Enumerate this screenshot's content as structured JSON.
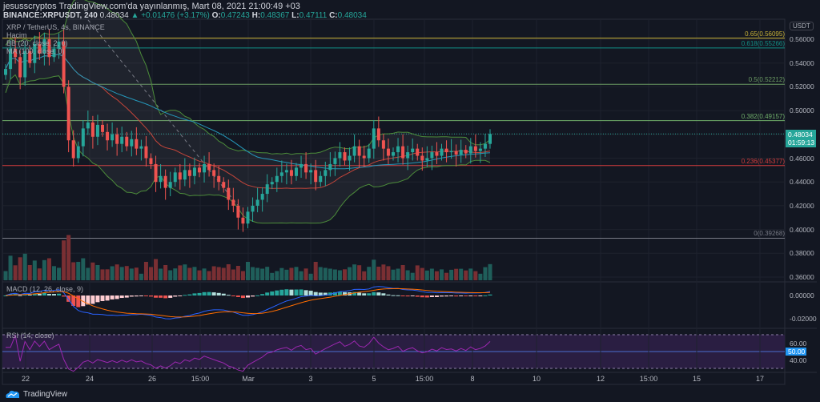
{
  "header": {
    "publisher": "jesusscryptos TradingView.com'da yayınlanmış, Mart 08, 2021 21:00:49 +03",
    "symbol": "BINANCE:XRPUSDT, 240",
    "last": "0.48034",
    "change": "▲ +0.01476 (+3.17%)",
    "o_label": "O:",
    "o": "0.47243",
    "h_label": "H:",
    "h": "0.48367",
    "l_label": "L:",
    "l": "0.47111",
    "c_label": "C:",
    "c": "0.48034"
  },
  "legend": {
    "title": "XRP / TetherUS, 4s, BINANCE",
    "volume": "Hacim",
    "bb": "BB (20, close, 2, 0)",
    "ma": "MA (100, close, 0)",
    "macd": "MACD (12, 26, close, 9)",
    "rsi": "RSI (14, close)"
  },
  "axis": {
    "currency": "USDT",
    "price_labels": [
      "0.56000",
      "0.54000",
      "0.52000",
      "0.50000",
      "0.46000",
      "0.44000",
      "0.42000",
      "0.40000",
      "0.38000",
      "0.36000"
    ],
    "macd_labels": [
      "0.00000",
      "-0.02000"
    ],
    "rsi_labels": [
      "60.00",
      "40.00"
    ],
    "rsi_current": "50.00",
    "last_price": "0.48034",
    "countdown": "01:59:13",
    "time_labels": [
      "22",
      "24",
      "26",
      "15:00",
      "Mar",
      "3",
      "5",
      "15:00",
      "8",
      "10",
      "12",
      "15:00",
      "15",
      "17"
    ]
  },
  "fib": [
    {
      "label": "0.65(0.56095)",
      "price": 0.56095,
      "color": "#c9b236"
    },
    {
      "label": "0.618(0.55266)",
      "price": 0.55266,
      "color": "#138f86"
    },
    {
      "label": "0.5(0.52212)",
      "price": 0.52212,
      "color": "#6a9a62"
    },
    {
      "label": "0.382(0.49157)",
      "price": 0.49157,
      "color": "#6fae6a"
    },
    {
      "label": "0.236(0.45377)",
      "price": 0.45377,
      "color": "#d23c3c"
    },
    {
      "label": "0(0.39268)",
      "price": 0.39268,
      "color": "#787b86"
    }
  ],
  "colors": {
    "up": "#26a69a",
    "down": "#ef5350",
    "bg": "#131722"
  },
  "footer": {
    "brand": "TradingView"
  },
  "chart_data": {
    "type": "candlestick",
    "interval": "240",
    "ylim": [
      0.35,
      0.575
    ],
    "closes": [
      0.535,
      0.552,
      0.545,
      0.528,
      0.55,
      0.54,
      0.556,
      0.548,
      0.56,
      0.545,
      0.552,
      0.558,
      0.52,
      0.475,
      0.46,
      0.47,
      0.485,
      0.49,
      0.478,
      0.488,
      0.482,
      0.475,
      0.48,
      0.472,
      0.478,
      0.47,
      0.476,
      0.468,
      0.47,
      0.46,
      0.455,
      0.44,
      0.445,
      0.435,
      0.44,
      0.448,
      0.442,
      0.45,
      0.445,
      0.452,
      0.448,
      0.455,
      0.45,
      0.445,
      0.44,
      0.435,
      0.425,
      0.42,
      0.41,
      0.405,
      0.415,
      0.42,
      0.425,
      0.43,
      0.438,
      0.44,
      0.445,
      0.448,
      0.45,
      0.445,
      0.452,
      0.455,
      0.448,
      0.45,
      0.44,
      0.445,
      0.45,
      0.455,
      0.46,
      0.465,
      0.458,
      0.462,
      0.47,
      0.462,
      0.46,
      0.468,
      0.485,
      0.475,
      0.468,
      0.462,
      0.465,
      0.47,
      0.46,
      0.465,
      0.468,
      0.462,
      0.458,
      0.46,
      0.465,
      0.462,
      0.468,
      0.465,
      0.466,
      0.463,
      0.467,
      0.464,
      0.47,
      0.466,
      0.468,
      0.472,
      0.48034
    ]
  }
}
